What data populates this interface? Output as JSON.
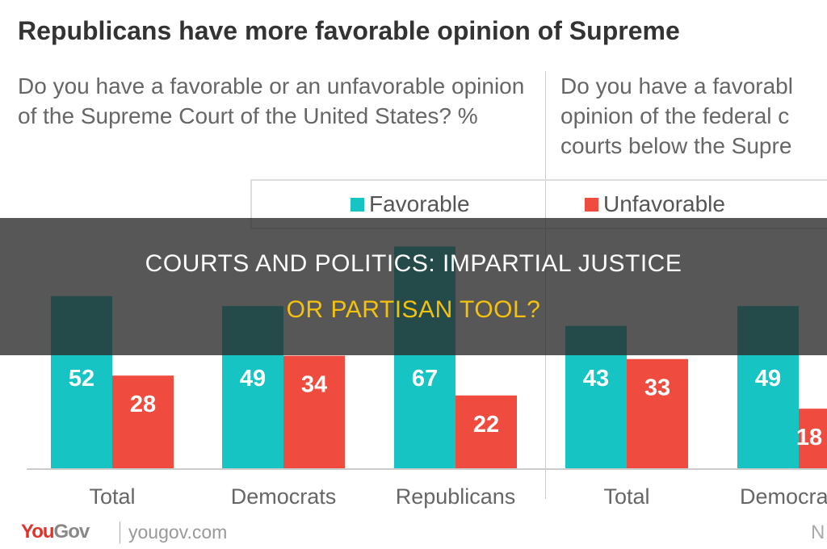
{
  "chart_data": [
    {
      "type": "bar",
      "title": "Republicans have more favorable opinion of Supreme",
      "question": "Do you have a favorable or an unfavorable opinion of the Supreme Court of the United States? %",
      "categories": [
        "Total",
        "Democrats",
        "Republicans"
      ],
      "series": [
        {
          "name": "Favorable",
          "values": [
            52,
            49,
            67
          ]
        },
        {
          "name": "Unfavorable",
          "values": [
            28,
            34,
            22
          ]
        }
      ],
      "ylim": [
        0,
        70
      ],
      "grid": false,
      "legend": "top"
    },
    {
      "type": "bar",
      "question": "Do you have a favorabl\nopinion of the federal c\ncourts below the Supre",
      "categories": [
        "Total",
        "Democra"
      ],
      "series": [
        {
          "name": "Favorable",
          "values": [
            43,
            49
          ]
        },
        {
          "name": "Unfavorable",
          "values": [
            33,
            18
          ]
        }
      ],
      "ylim": [
        0,
        70
      ]
    }
  ],
  "legend": {
    "favorable": "Favorable",
    "unfavorable": "Unfavorable"
  },
  "colors": {
    "favorable": "#17c4c4",
    "unfavorable": "#ef4b3f"
  },
  "footer": {
    "logo": "YouGov",
    "site": "yougov.com",
    "right_char": "N"
  },
  "banner": {
    "line1": "COURTS AND POLITICS: IMPARTIAL JUSTICE",
    "line2": "OR PARTISAN TOOL?"
  }
}
